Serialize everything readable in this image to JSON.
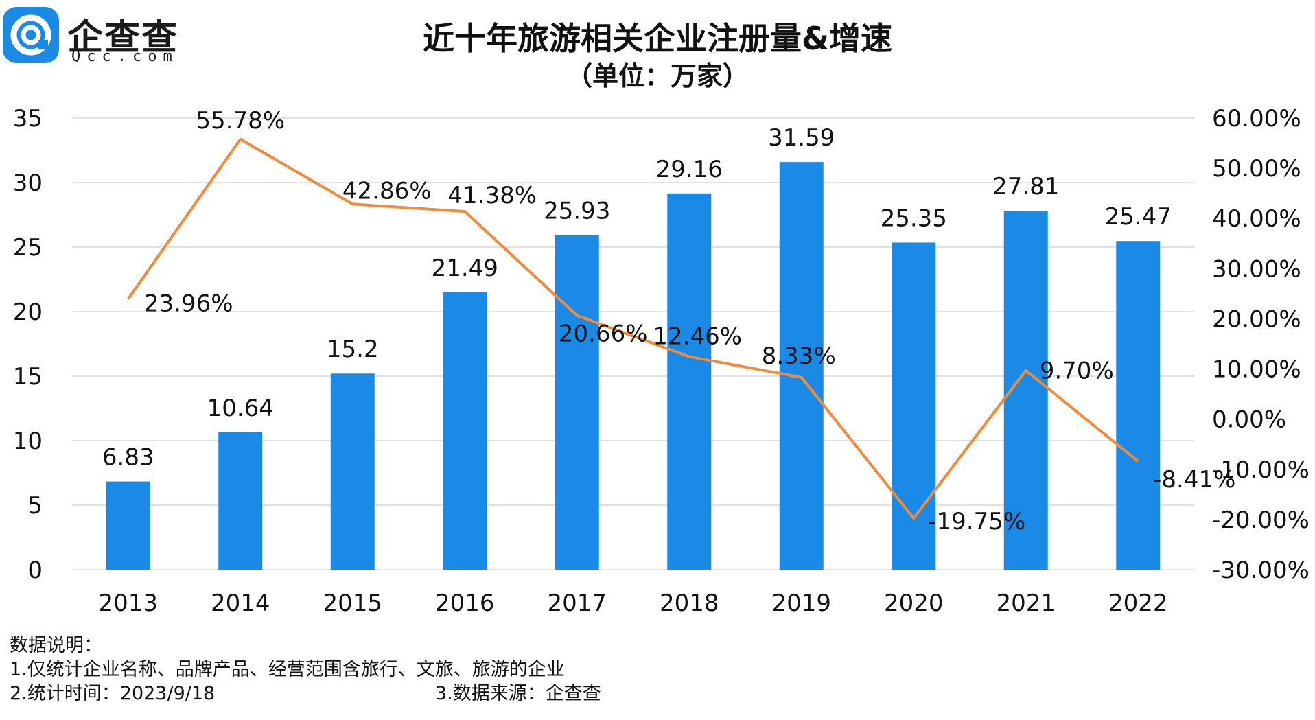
{
  "brand": {
    "name": "企查查",
    "domain": "Qcc.com"
  },
  "chart_data": {
    "type": "bar+line",
    "title": "近十年旅游相关企业注册量&增速",
    "subtitle": "（单位：万家）",
    "categories": [
      "2013",
      "2014",
      "2015",
      "2016",
      "2017",
      "2018",
      "2019",
      "2020",
      "2021",
      "2022"
    ],
    "bar_series": {
      "name": "注册量",
      "values": [
        6.83,
        10.64,
        15.2,
        21.49,
        25.93,
        29.16,
        31.59,
        25.35,
        27.81,
        25.47
      ],
      "labels": [
        "6.83",
        "10.64",
        "15.2",
        "21.49",
        "25.93",
        "29.16",
        "31.59",
        "25.35",
        "27.81",
        "25.47"
      ]
    },
    "line_series": {
      "name": "增速",
      "values": [
        23.96,
        55.78,
        42.86,
        41.38,
        20.66,
        12.46,
        8.33,
        -19.75,
        9.7,
        -8.41
      ],
      "labels": [
        "23.96%",
        "55.78%",
        "42.86%",
        "41.38%",
        "20.66%",
        "12.46%",
        "8.33%",
        "-19.75%",
        "9.70%",
        "-8.41%"
      ]
    },
    "y_left": {
      "min": 0,
      "max": 35,
      "ticks": [
        "0",
        "5",
        "10",
        "15",
        "20",
        "25",
        "30",
        "35"
      ]
    },
    "y_right": {
      "min": -30,
      "max": 60,
      "ticks": [
        "-30.00%",
        "-20.00%",
        "-10.00%",
        "0.00%",
        "10.00%",
        "20.00%",
        "30.00%",
        "40.00%",
        "50.00%",
        "60.00%"
      ]
    },
    "grid": true,
    "colors": {
      "bar": "#1a8ae6",
      "line": "#f08a3c",
      "grid": "#d9d9d9"
    }
  },
  "notes": {
    "heading": "数据说明：",
    "line1": "1.仅统计企业名称、品牌产品、经营范围含旅行、文旅、旅游的企业",
    "line2": "2.统计时间：2023/9/18",
    "line3": "3.数据来源：企查查"
  }
}
